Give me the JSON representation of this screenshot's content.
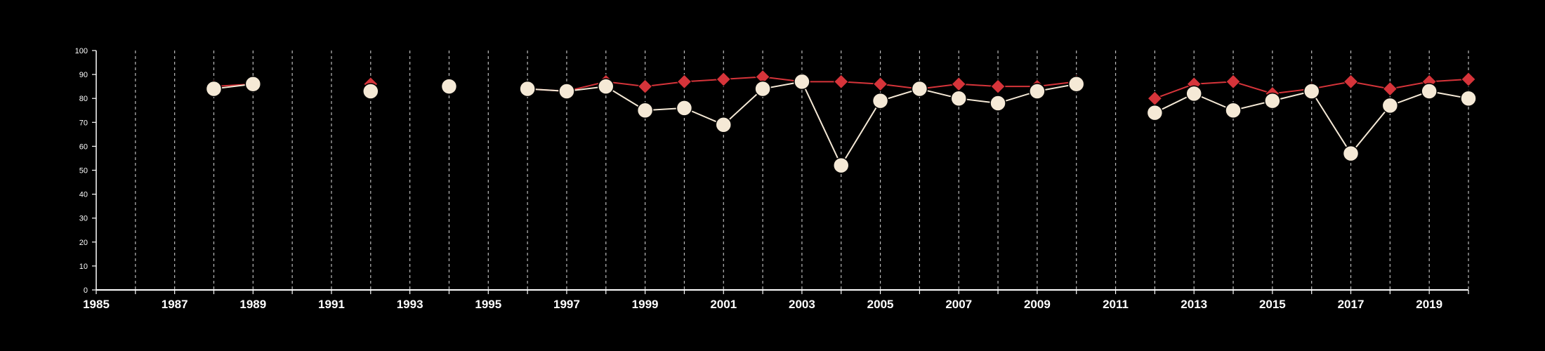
{
  "chart_data": {
    "type": "line",
    "title": "",
    "xlabel": "",
    "ylabel": "",
    "xlim": [
      1985,
      2020
    ],
    "ylim": [
      0,
      100
    ],
    "y_ticks": [
      0,
      10,
      20,
      30,
      40,
      50,
      60,
      70,
      80,
      90,
      100
    ],
    "x_ticks": [
      1985,
      1987,
      1989,
      1991,
      1993,
      1995,
      1997,
      1999,
      2001,
      2003,
      2005,
      2007,
      2009,
      2011,
      2013,
      2015,
      2017,
      2019
    ],
    "vertical_grid_years": [
      1986,
      1987,
      1988,
      1989,
      1990,
      1991,
      1992,
      1993,
      1994,
      1995,
      1996,
      1997,
      1998,
      1999,
      2000,
      2001,
      2002,
      2003,
      2004,
      2005,
      2006,
      2007,
      2008,
      2009,
      2010,
      2011,
      2012,
      2013,
      2014,
      2015,
      2016,
      2017,
      2018,
      2019,
      2020
    ],
    "grid": "vertical-dashed",
    "legend": "none",
    "x": [
      1988,
      1989,
      1990,
      1991,
      1992,
      1993,
      1994,
      1995,
      1996,
      1997,
      1998,
      1999,
      2000,
      2001,
      2002,
      2003,
      2004,
      2005,
      2006,
      2007,
      2008,
      2009,
      2010,
      2011,
      2012,
      2013,
      2014,
      2015,
      2016,
      2017,
      2018,
      2019,
      2020
    ],
    "series": [
      {
        "marker": "diamond",
        "color": "#d6343a",
        "values": [
          85,
          86,
          null,
          null,
          86,
          null,
          85,
          null,
          84,
          83,
          87,
          85,
          87,
          88,
          89,
          87,
          87,
          86,
          84,
          86,
          85,
          85,
          87,
          null,
          80,
          86,
          87,
          82,
          84,
          87,
          84,
          87,
          88
        ]
      },
      {
        "marker": "circle",
        "color": "#f5e9d6",
        "values": [
          84,
          86,
          null,
          null,
          83,
          null,
          85,
          null,
          84,
          83,
          85,
          75,
          76,
          69,
          84,
          87,
          52,
          79,
          84,
          80,
          78,
          83,
          86,
          null,
          74,
          82,
          75,
          79,
          83,
          57,
          77,
          83,
          80
        ]
      }
    ],
    "colors": {
      "background": "#000000",
      "axis": "#ffffff",
      "grid": "#bbbbbb"
    }
  }
}
